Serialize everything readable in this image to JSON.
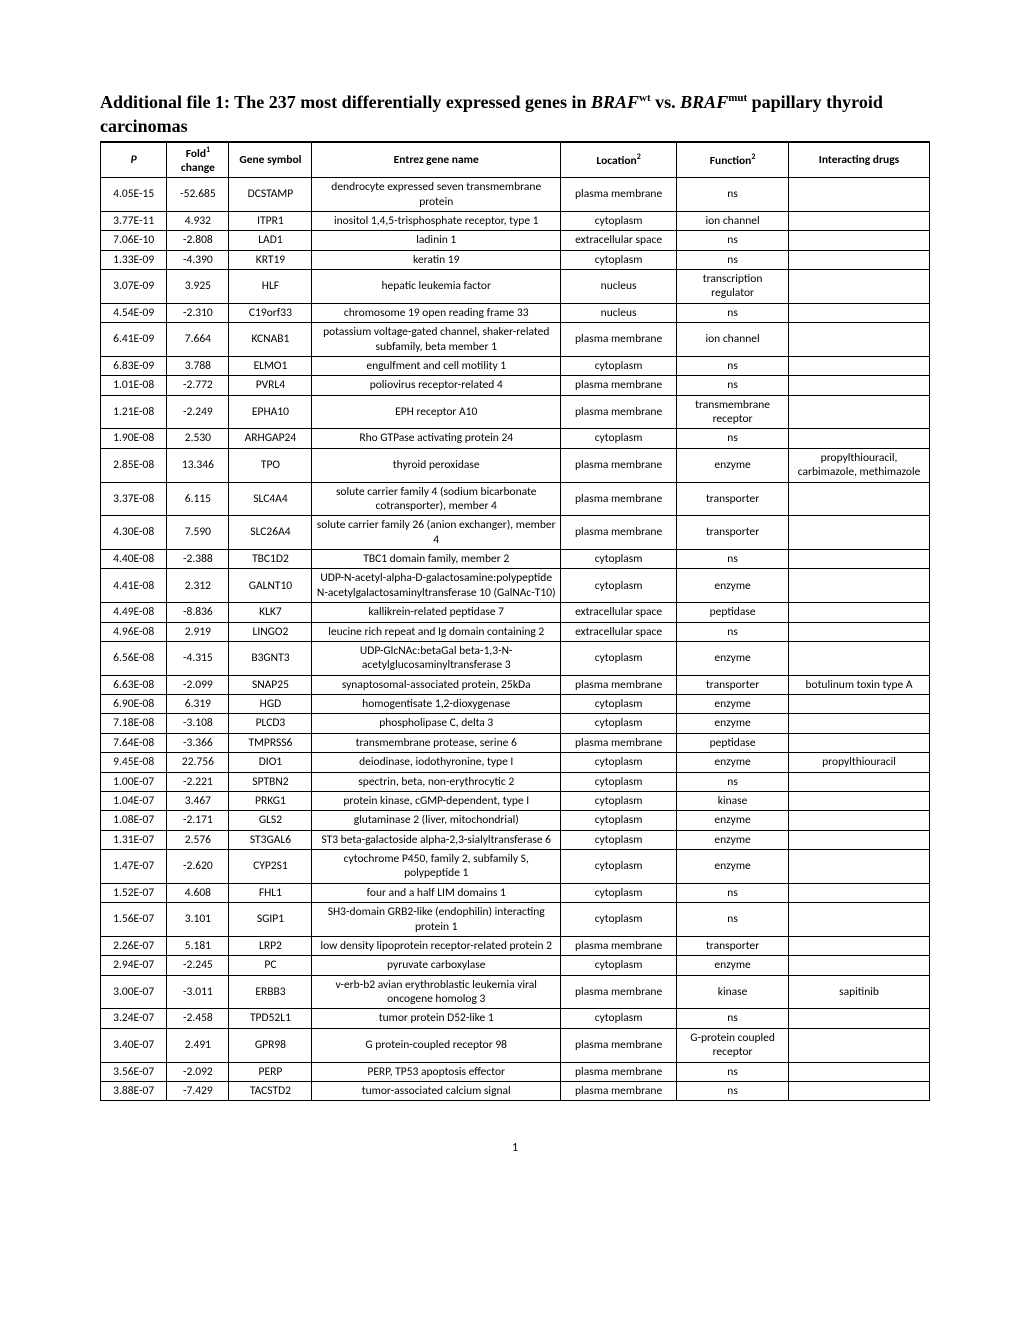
{
  "title_prefix": "Additional file 1: The 237 most differentially expressed genes in ",
  "title_braf1": "BRAF",
  "title_sup1": "wt",
  "title_vs": " vs. ",
  "title_braf2": "BRAF",
  "title_sup2": "mut",
  "title_suffix": " papillary thyroid carcinomas",
  "headers": {
    "p": "P",
    "fold_pre": "Fold",
    "fold_sup": "1",
    "fold_post": " change",
    "gene_symbol": "Gene symbol",
    "entrez": "Entrez gene name",
    "loc_pre": "Location",
    "loc_sup": "2",
    "func_pre": "Function",
    "func_sup": "2",
    "drugs": "Interacting drugs"
  },
  "rows": [
    {
      "p": "4.05E-15",
      "fold": "-52.685",
      "sym": "DCSTAMP",
      "name": "dendrocyte expressed seven transmembrane protein",
      "loc": "plasma membrane",
      "func": "ns",
      "drug": ""
    },
    {
      "p": "3.77E-11",
      "fold": "4.932",
      "sym": "ITPR1",
      "name": "inositol 1,4,5-trisphosphate receptor, type 1",
      "loc": "cytoplasm",
      "func": "ion channel",
      "drug": ""
    },
    {
      "p": "7.06E-10",
      "fold": "-2.808",
      "sym": "LAD1",
      "name": "ladinin 1",
      "loc": "extracellular space",
      "func": "ns",
      "drug": ""
    },
    {
      "p": "1.33E-09",
      "fold": "-4.390",
      "sym": "KRT19",
      "name": "keratin 19",
      "loc": "cytoplasm",
      "func": "ns",
      "drug": ""
    },
    {
      "p": "3.07E-09",
      "fold": "3.925",
      "sym": "HLF",
      "name": "hepatic leukemia factor",
      "loc": "nucleus",
      "func": "transcription regulator",
      "drug": ""
    },
    {
      "p": "4.54E-09",
      "fold": "-2.310",
      "sym": "C19orf33",
      "name": "chromosome 19 open reading frame 33",
      "loc": "nucleus",
      "func": "ns",
      "drug": ""
    },
    {
      "p": "6.41E-09",
      "fold": "7.664",
      "sym": "KCNAB1",
      "name": "potassium voltage-gated channel, shaker-related subfamily, beta member 1",
      "loc": "plasma membrane",
      "func": "ion channel",
      "drug": ""
    },
    {
      "p": "6.83E-09",
      "fold": "3.788",
      "sym": "ELMO1",
      "name": "engulfment and cell motility 1",
      "loc": "cytoplasm",
      "func": "ns",
      "drug": ""
    },
    {
      "p": "1.01E-08",
      "fold": "-2.772",
      "sym": "PVRL4",
      "name": "poliovirus receptor-related 4",
      "loc": "plasma membrane",
      "func": "ns",
      "drug": ""
    },
    {
      "p": "1.21E-08",
      "fold": "-2.249",
      "sym": "EPHA10",
      "name": "EPH receptor A10",
      "loc": "plasma membrane",
      "func": "transmembrane receptor",
      "drug": ""
    },
    {
      "p": "1.90E-08",
      "fold": "2.530",
      "sym": "ARHGAP24",
      "name": "Rho GTPase activating protein 24",
      "loc": "cytoplasm",
      "func": "ns",
      "drug": ""
    },
    {
      "p": "2.85E-08",
      "fold": "13.346",
      "sym": "TPO",
      "name": "thyroid peroxidase",
      "loc": "plasma membrane",
      "func": "enzyme",
      "drug": "propylthiouracil, carbimazole, methimazole"
    },
    {
      "p": "3.37E-08",
      "fold": "6.115",
      "sym": "SLC4A4",
      "name": "solute carrier family 4 (sodium bicarbonate cotransporter), member 4",
      "loc": "plasma membrane",
      "func": "transporter",
      "drug": ""
    },
    {
      "p": "4.30E-08",
      "fold": "7.590",
      "sym": "SLC26A4",
      "name": "solute carrier family 26 (anion exchanger), member 4",
      "loc": "plasma membrane",
      "func": "transporter",
      "drug": ""
    },
    {
      "p": "4.40E-08",
      "fold": "-2.388",
      "sym": "TBC1D2",
      "name": "TBC1 domain family, member 2",
      "loc": "cytoplasm",
      "func": "ns",
      "drug": ""
    },
    {
      "p": "4.41E-08",
      "fold": "2.312",
      "sym": "GALNT10",
      "name": "UDP-N-acetyl-alpha-D-galactosamine:polypeptide N-acetylgalactosaminyltransferase 10 (GalNAc-T10)",
      "loc": "cytoplasm",
      "func": "enzyme",
      "drug": ""
    },
    {
      "p": "4.49E-08",
      "fold": "-8.836",
      "sym": "KLK7",
      "name": "kallikrein-related peptidase 7",
      "loc": "extracellular space",
      "func": "peptidase",
      "drug": ""
    },
    {
      "p": "4.96E-08",
      "fold": "2.919",
      "sym": "LINGO2",
      "name": "leucine rich repeat and Ig domain containing 2",
      "loc": "extracellular space",
      "func": "ns",
      "drug": ""
    },
    {
      "p": "6.56E-08",
      "fold": "-4.315",
      "sym": "B3GNT3",
      "name": "UDP-GlcNAc:betaGal beta-1,3-N-acetylglucosaminyltransferase 3",
      "loc": "cytoplasm",
      "func": "enzyme",
      "drug": ""
    },
    {
      "p": "6.63E-08",
      "fold": "-2.099",
      "sym": "SNAP25",
      "name": "synaptosomal-associated protein, 25kDa",
      "loc": "plasma membrane",
      "func": "transporter",
      "drug": "botulinum toxin type A"
    },
    {
      "p": "6.90E-08",
      "fold": "6.319",
      "sym": "HGD",
      "name": "homogentisate 1,2-dioxygenase",
      "loc": "cytoplasm",
      "func": "enzyme",
      "drug": ""
    },
    {
      "p": "7.18E-08",
      "fold": "-3.108",
      "sym": "PLCD3",
      "name": "phospholipase C, delta 3",
      "loc": "cytoplasm",
      "func": "enzyme",
      "drug": ""
    },
    {
      "p": "7.64E-08",
      "fold": "-3.366",
      "sym": "TMPRSS6",
      "name": "transmembrane protease, serine 6",
      "loc": "plasma membrane",
      "func": "peptidase",
      "drug": ""
    },
    {
      "p": "9.45E-08",
      "fold": "22.756",
      "sym": "DIO1",
      "name": "deiodinase, iodothyronine, type I",
      "loc": "cytoplasm",
      "func": "enzyme",
      "drug": "propylthiouracil"
    },
    {
      "p": "1.00E-07",
      "fold": "-2.221",
      "sym": "SPTBN2",
      "name": "spectrin, beta, non-erythrocytic 2",
      "loc": "cytoplasm",
      "func": "ns",
      "drug": ""
    },
    {
      "p": "1.04E-07",
      "fold": "3.467",
      "sym": "PRKG1",
      "name": "protein kinase, cGMP-dependent, type I",
      "loc": "cytoplasm",
      "func": "kinase",
      "drug": ""
    },
    {
      "p": "1.08E-07",
      "fold": "-2.171",
      "sym": "GLS2",
      "name": "glutaminase 2 (liver, mitochondrial)",
      "loc": "cytoplasm",
      "func": "enzyme",
      "drug": ""
    },
    {
      "p": "1.31E-07",
      "fold": "2.576",
      "sym": "ST3GAL6",
      "name": "ST3 beta-galactoside alpha-2,3-sialyltransferase 6",
      "loc": "cytoplasm",
      "func": "enzyme",
      "drug": ""
    },
    {
      "p": "1.47E-07",
      "fold": "-2.620",
      "sym": "CYP2S1",
      "name": "cytochrome P450, family 2, subfamily S, polypeptide 1",
      "loc": "cytoplasm",
      "func": "enzyme",
      "drug": ""
    },
    {
      "p": "1.52E-07",
      "fold": "4.608",
      "sym": "FHL1",
      "name": "four and a half LIM domains 1",
      "loc": "cytoplasm",
      "func": "ns",
      "drug": ""
    },
    {
      "p": "1.56E-07",
      "fold": "3.101",
      "sym": "SGIP1",
      "name": "SH3-domain GRB2-like (endophilin) interacting protein 1",
      "loc": "cytoplasm",
      "func": "ns",
      "drug": ""
    },
    {
      "p": "2.26E-07",
      "fold": "5.181",
      "sym": "LRP2",
      "name": "low density lipoprotein receptor-related protein 2",
      "loc": "plasma membrane",
      "func": "transporter",
      "drug": ""
    },
    {
      "p": "2.94E-07",
      "fold": "-2.245",
      "sym": "PC",
      "name": "pyruvate carboxylase",
      "loc": "cytoplasm",
      "func": "enzyme",
      "drug": ""
    },
    {
      "p": "3.00E-07",
      "fold": "-3.011",
      "sym": "ERBB3",
      "name": "v-erb-b2 avian erythroblastic leukemia viral oncogene homolog 3",
      "loc": "plasma membrane",
      "func": "kinase",
      "drug": "sapitinib"
    },
    {
      "p": "3.24E-07",
      "fold": "-2.458",
      "sym": "TPD52L1",
      "name": "tumor protein D52-like 1",
      "loc": "cytoplasm",
      "func": "ns",
      "drug": ""
    },
    {
      "p": "3.40E-07",
      "fold": "2.491",
      "sym": "GPR98",
      "name": "G protein-coupled receptor 98",
      "loc": "plasma membrane",
      "func": "G-protein coupled receptor",
      "drug": ""
    },
    {
      "p": "3.56E-07",
      "fold": "-2.092",
      "sym": "PERP",
      "name": "PERP, TP53 apoptosis effector",
      "loc": "plasma membrane",
      "func": "ns",
      "drug": ""
    },
    {
      "p": "3.88E-07",
      "fold": "-7.429",
      "sym": "TACSTD2",
      "name": "tumor-associated calcium signal",
      "loc": "plasma membrane",
      "func": "ns",
      "drug": ""
    }
  ],
  "page_number": "1",
  "style": {
    "type": "table",
    "background_color": "#ffffff",
    "border_color": "#000000",
    "text_color": "#000000",
    "title_font": "Times New Roman",
    "title_fontsize_pt": 14,
    "table_font": "Calibri",
    "table_fontsize_pt": 9,
    "columns": [
      "P",
      "Fold change",
      "Gene symbol",
      "Entrez gene name",
      "Location",
      "Function",
      "Interacting drugs"
    ],
    "col_align": [
      "center",
      "center",
      "center",
      "center",
      "center",
      "center",
      "center"
    ],
    "col_width_pct": [
      8,
      7.5,
      10,
      30,
      14,
      13.5,
      17
    ]
  }
}
